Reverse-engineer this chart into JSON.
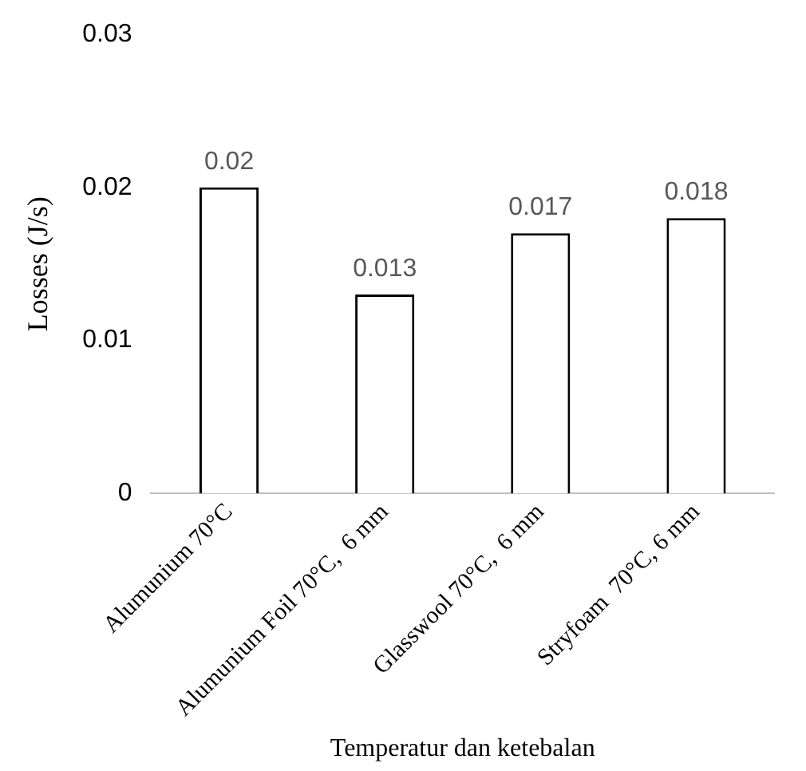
{
  "chart_data": {
    "type": "bar",
    "xlabel": "Temperatur dan ketebalan",
    "ylabel": "Losses (J/s)",
    "categories": [
      "Alumunium 70°C",
      "Alumunium Foil 70°C,  6 mm",
      "Glasswool 70°C,  6 mm",
      "Stryfoam  70°C, 6 mm"
    ],
    "values": [
      0.02,
      0.013,
      0.017,
      0.018
    ],
    "color": "#ffffff",
    "ylim": [
      0,
      0.03
    ],
    "yticks": [
      0,
      0.01,
      0.02,
      0.03
    ],
    "grid": false,
    "legend": false,
    "data_labels": true
  }
}
